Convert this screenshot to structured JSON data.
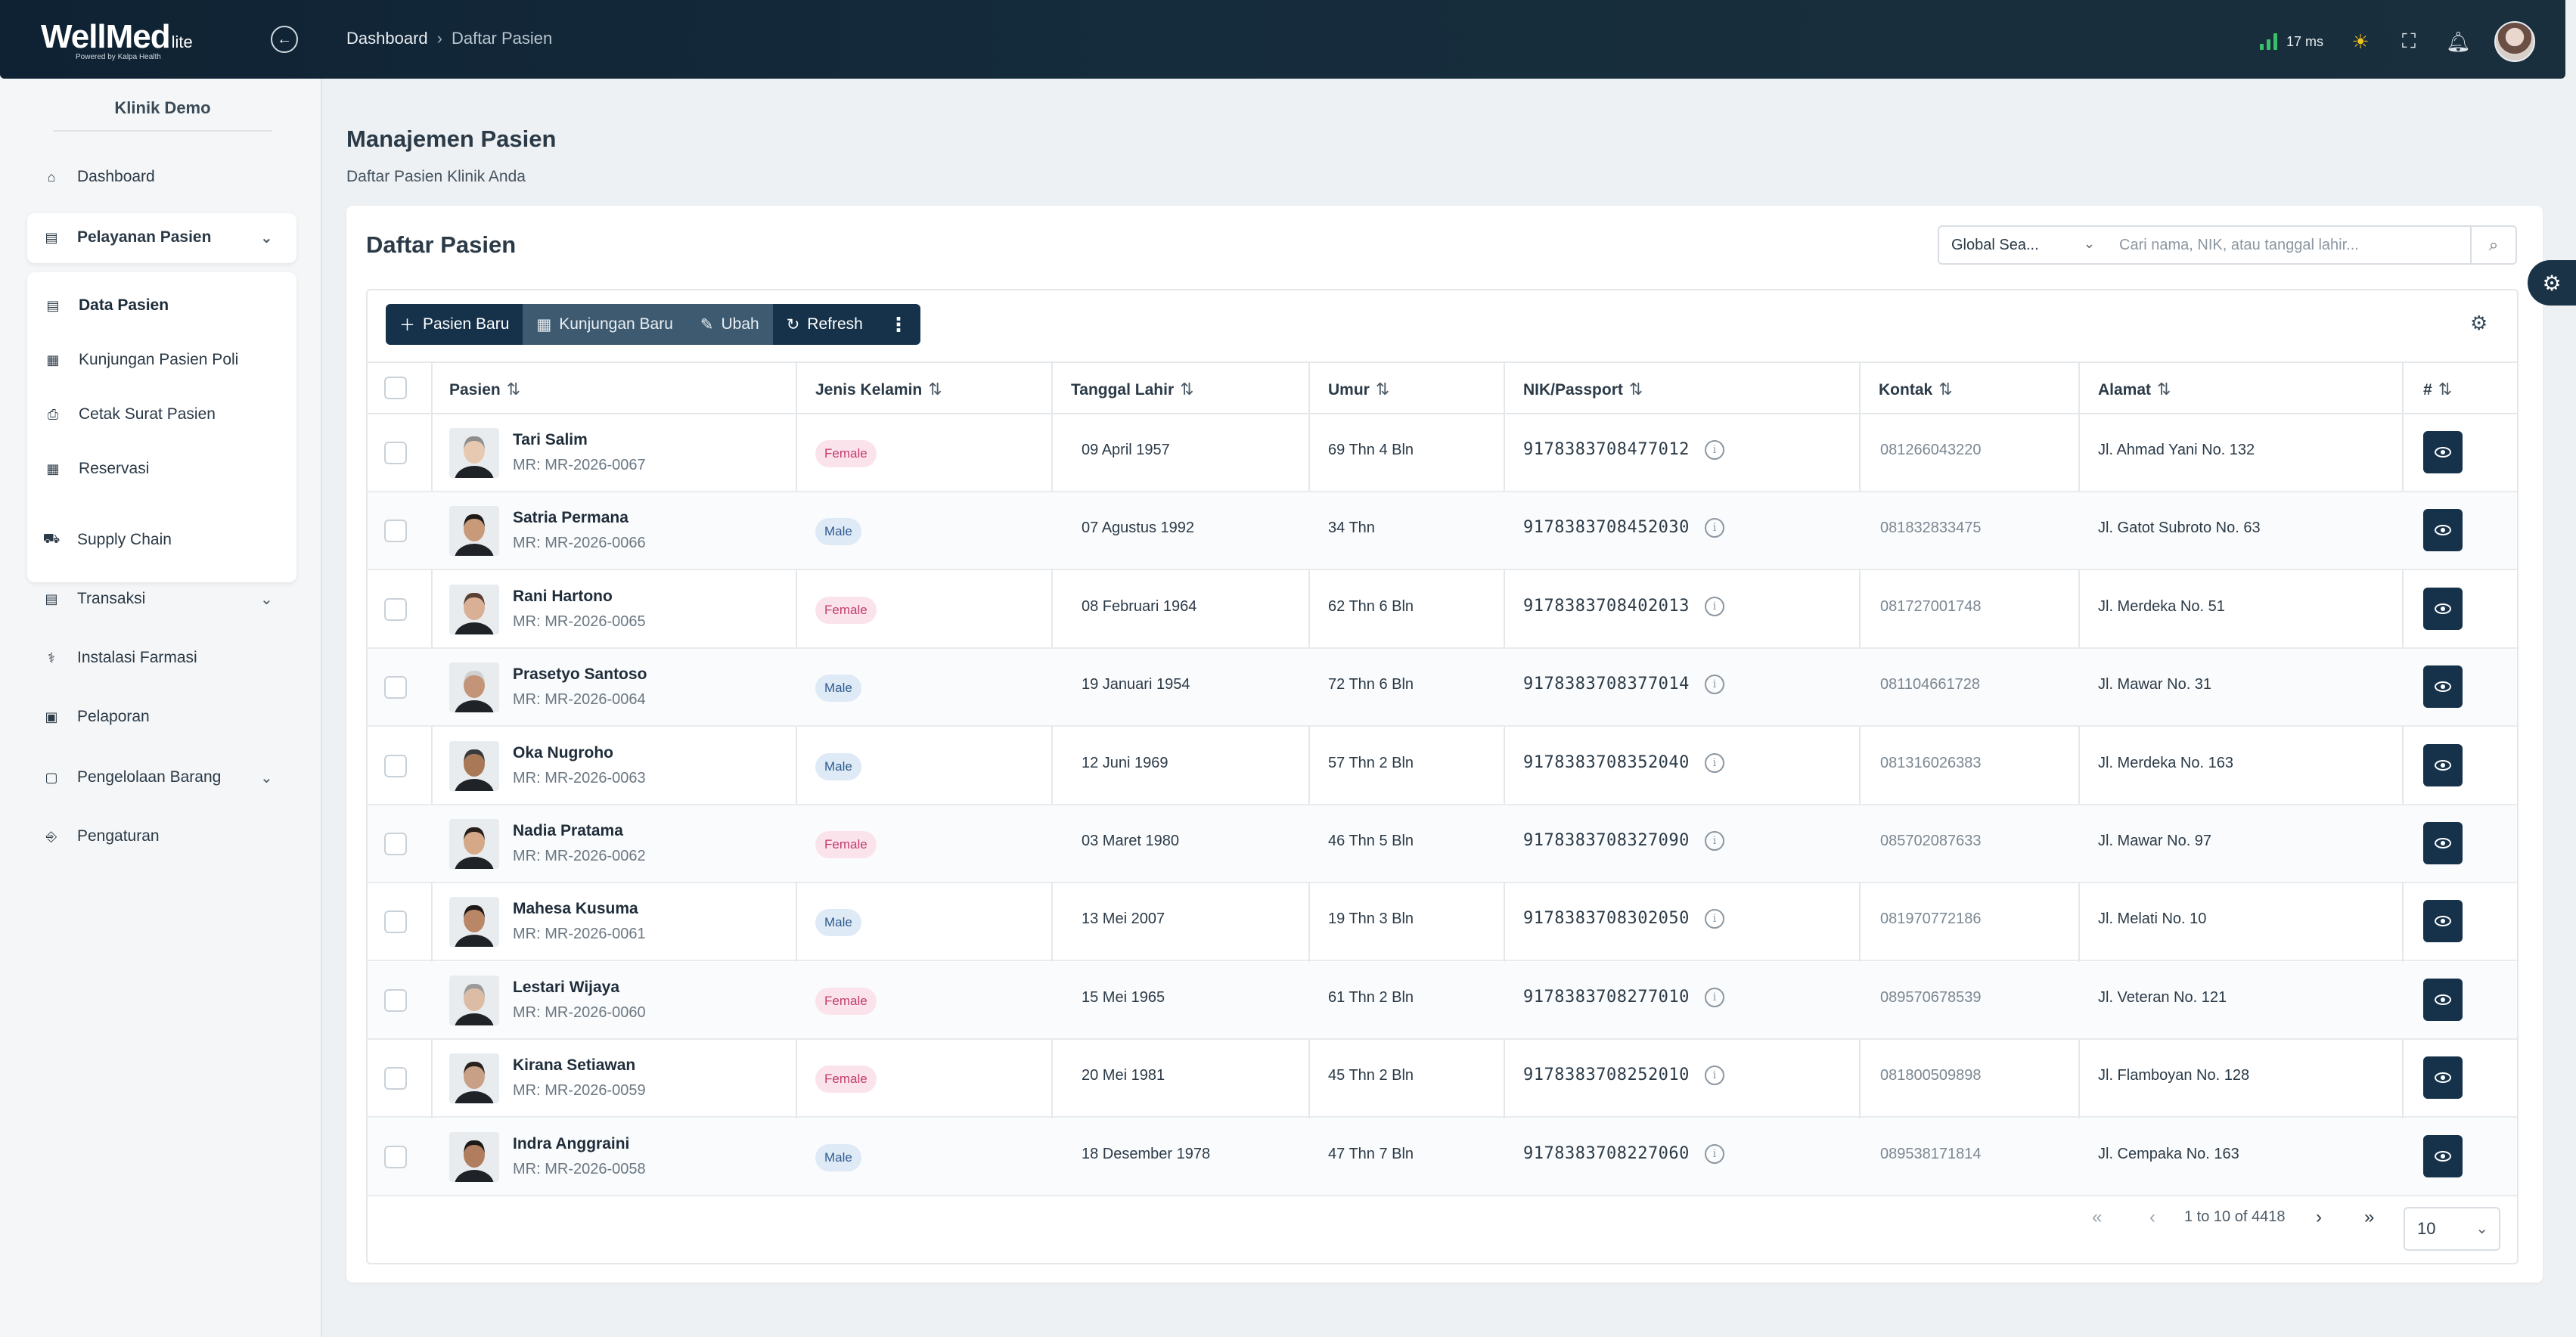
{
  "header": {
    "brand": "WellMed",
    "brand_suffix": "lite",
    "powered_by": "Powered by Kalpa Health",
    "breadcrumb": [
      "Dashboard",
      "Daftar Pasien"
    ],
    "latency": "17 ms",
    "latency_color": "#38c06b"
  },
  "sidebar": {
    "clinic_name": "Klinik Demo",
    "items": [
      {
        "label": "Dashboard",
        "icon": "home-icon"
      },
      {
        "label": "Pelayanan Pasien",
        "icon": "clipboard-icon",
        "expanded": true
      },
      {
        "label": "Data Pasien",
        "icon": "document-icon",
        "active": true
      },
      {
        "label": "Kunjungan Pasien Poli",
        "icon": "calendar-icon"
      },
      {
        "label": "Cetak Surat Pasien",
        "icon": "print-icon"
      },
      {
        "label": "Reservasi",
        "icon": "calendar-check-icon"
      },
      {
        "label": "Supply Chain",
        "icon": "truck-icon"
      },
      {
        "label": "Transaksi",
        "icon": "receipt-icon",
        "expandable": true
      },
      {
        "label": "Instalasi Farmasi",
        "icon": "pill-icon"
      },
      {
        "label": "Pelaporan",
        "icon": "report-icon"
      },
      {
        "label": "Pengelolaan Barang",
        "icon": "box-icon",
        "expandable": true
      },
      {
        "label": "Pengaturan",
        "icon": "settings-icon"
      }
    ]
  },
  "page": {
    "title": "Manajemen Pasien",
    "subtitle": "Daftar Pasien Klinik Anda",
    "card_title": "Daftar Pasien"
  },
  "search": {
    "scope": "Global Sea...",
    "placeholder": "Cari nama, NIK, atau tanggal lahir..."
  },
  "toolbar": {
    "new_patient": "Pasien Baru",
    "new_visit": "Kunjungan Baru",
    "edit": "Ubah",
    "refresh": "Refresh"
  },
  "table": {
    "columns": [
      "Pasien",
      "Jenis Kelamin",
      "Tanggal Lahir",
      "Umur",
      "NIK/Passport",
      "Kontak",
      "Alamat",
      "#"
    ],
    "rows": [
      {
        "name": "Tari Salim",
        "mr": "MR: MR-2026-0067",
        "gender": "Female",
        "dob": "09 April 1957",
        "age": "69 Thn 4 Bln",
        "nik": "9178383708477012",
        "phone": "081266043220",
        "address": "Jl. Ahmad Yani No. 132"
      },
      {
        "name": "Satria Permana",
        "mr": "MR: MR-2026-0066",
        "gender": "Male",
        "dob": "07 Agustus 1992",
        "age": "34 Thn",
        "nik": "9178383708452030",
        "phone": "081832833475",
        "address": "Jl. Gatot Subroto No. 63"
      },
      {
        "name": "Rani Hartono",
        "mr": "MR: MR-2026-0065",
        "gender": "Female",
        "dob": "08 Februari 1964",
        "age": "62 Thn 6 Bln",
        "nik": "9178383708402013",
        "phone": "081727001748",
        "address": "Jl. Merdeka No. 51"
      },
      {
        "name": "Prasetyo Santoso",
        "mr": "MR: MR-2026-0064",
        "gender": "Male",
        "dob": "19 Januari 1954",
        "age": "72 Thn 6 Bln",
        "nik": "9178383708377014",
        "phone": "081104661728",
        "address": "Jl. Mawar No. 31"
      },
      {
        "name": "Oka Nugroho",
        "mr": "MR: MR-2026-0063",
        "gender": "Male",
        "dob": "12 Juni 1969",
        "age": "57 Thn 2 Bln",
        "nik": "9178383708352040",
        "phone": "081316026383",
        "address": "Jl. Merdeka No. 163"
      },
      {
        "name": "Nadia Pratama",
        "mr": "MR: MR-2026-0062",
        "gender": "Female",
        "dob": "03 Maret 1980",
        "age": "46 Thn 5 Bln",
        "nik": "9178383708327090",
        "phone": "085702087633",
        "address": "Jl. Mawar No. 97"
      },
      {
        "name": "Mahesa Kusuma",
        "mr": "MR: MR-2026-0061",
        "gender": "Male",
        "dob": "13 Mei 2007",
        "age": "19 Thn 3 Bln",
        "nik": "9178383708302050",
        "phone": "081970772186",
        "address": "Jl. Melati No. 10"
      },
      {
        "name": "Lestari Wijaya",
        "mr": "MR: MR-2026-0060",
        "gender": "Female",
        "dob": "15 Mei 1965",
        "age": "61 Thn 2 Bln",
        "nik": "9178383708277010",
        "phone": "089570678539",
        "address": "Jl. Veteran No. 121"
      },
      {
        "name": "Kirana Setiawan",
        "mr": "MR: MR-2026-0059",
        "gender": "Female",
        "dob": "20 Mei 1981",
        "age": "45 Thn 2 Bln",
        "nik": "9178383708252010",
        "phone": "081800509898",
        "address": "Jl. Flamboyan No. 128"
      },
      {
        "name": "Indra Anggraini",
        "mr": "MR: MR-2026-0058",
        "gender": "Male",
        "dob": "18 Desember 1978",
        "age": "47 Thn 7 Bln",
        "nik": "9178383708227060",
        "phone": "089538171814",
        "address": "Jl. Cempaka No. 163"
      }
    ]
  },
  "pagination": {
    "summary": "1 to 10 of 4418",
    "page_size": "10"
  },
  "colors": {
    "primary": "#16324a",
    "female_badge": "#fbe3ec",
    "male_badge": "#dfeaf7"
  }
}
